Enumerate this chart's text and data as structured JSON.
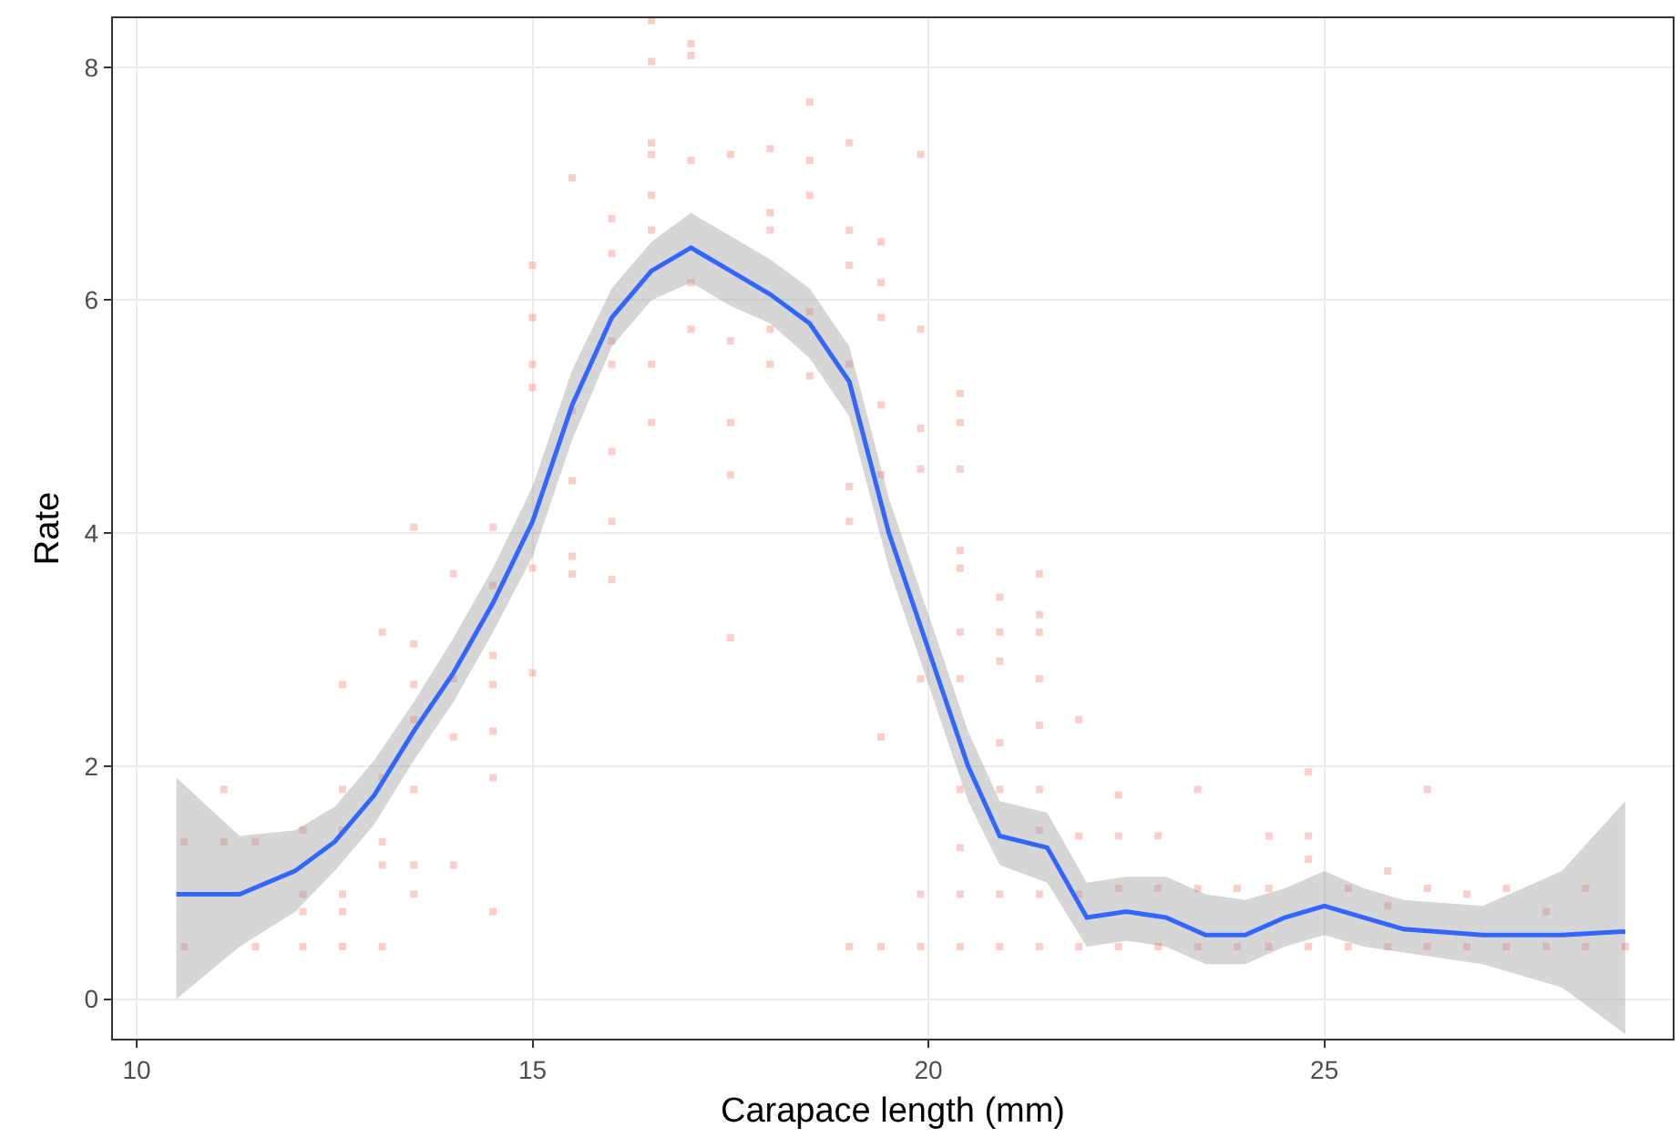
{
  "chart_data": {
    "type": "scatter",
    "xlabel": "Carapace length (mm)",
    "ylabel": "Rate",
    "xlim": [
      9.7,
      29.4
    ],
    "ylim": [
      -0.34,
      8.42
    ],
    "xticks": [
      10,
      15,
      20,
      25
    ],
    "yticks": [
      0,
      2,
      4,
      6,
      8
    ],
    "grid": true,
    "series": [
      {
        "color": "#f8766d",
        "marker": "square",
        "x": [
          10.6,
          10.6,
          11.1,
          11.1,
          11.5,
          11.5,
          12.1,
          12.1,
          12.1,
          12.1,
          12.6,
          12.6,
          12.6,
          12.6,
          12.6,
          12.6,
          13.1,
          13.1,
          13.1,
          13.1,
          13.1,
          13.5,
          13.5,
          13.5,
          13.5,
          13.5,
          13.5,
          13.5,
          14.0,
          14.0,
          14.0,
          14.0,
          14.5,
          14.5,
          14.5,
          14.5,
          14.5,
          14.5,
          14.5,
          15.0,
          15.0,
          15.0,
          15.0,
          15.0,
          15.0,
          15.5,
          15.5,
          15.5,
          15.5,
          15.5,
          16.0,
          16.0,
          16.0,
          16.0,
          16.0,
          16.0,
          16.0,
          16.5,
          16.5,
          16.5,
          16.5,
          16.5,
          16.5,
          16.5,
          16.5,
          17.0,
          17.0,
          17.0,
          17.0,
          17.0,
          17.5,
          17.5,
          17.5,
          17.5,
          17.5,
          18.0,
          18.0,
          18.0,
          18.0,
          18.0,
          18.5,
          18.5,
          18.5,
          18.5,
          18.5,
          19.0,
          19.0,
          19.0,
          19.0,
          19.0,
          19.0,
          19.0,
          19.4,
          19.4,
          19.4,
          19.4,
          19.4,
          19.4,
          19.4,
          19.9,
          19.9,
          19.9,
          19.9,
          19.9,
          19.9,
          19.9,
          20.4,
          20.4,
          20.4,
          20.4,
          20.4,
          20.4,
          20.4,
          20.4,
          20.4,
          20.4,
          20.4,
          20.9,
          20.9,
          20.9,
          20.9,
          20.9,
          20.9,
          20.9,
          21.4,
          21.4,
          21.4,
          21.4,
          21.4,
          21.4,
          21.4,
          21.4,
          21.4,
          21.9,
          21.9,
          21.9,
          21.9,
          22.4,
          22.4,
          22.4,
          22.4,
          22.9,
          22.9,
          22.9,
          23.4,
          23.4,
          23.4,
          23.9,
          23.9,
          24.3,
          24.3,
          24.3,
          24.8,
          24.8,
          24.8,
          24.8,
          25.3,
          25.3,
          25.8,
          25.8,
          25.8,
          26.3,
          26.3,
          26.3,
          26.8,
          26.8,
          27.3,
          27.3,
          27.8,
          27.8,
          28.3,
          28.3,
          28.8
        ],
        "values": [
          1.35,
          0.45,
          1.8,
          1.35,
          1.35,
          0.45,
          1.45,
          0.9,
          0.75,
          0.45,
          2.7,
          1.8,
          1.45,
          0.9,
          0.75,
          0.45,
          3.15,
          1.9,
          1.35,
          1.15,
          0.45,
          4.05,
          3.05,
          2.7,
          2.4,
          1.8,
          1.15,
          0.9,
          3.65,
          2.75,
          2.25,
          1.15,
          4.05,
          3.55,
          2.95,
          2.7,
          2.3,
          1.9,
          0.75,
          6.3,
          5.85,
          5.45,
          5.25,
          3.7,
          2.8,
          7.05,
          5.05,
          4.45,
          3.8,
          3.65,
          6.7,
          6.4,
          5.65,
          5.45,
          4.7,
          4.1,
          3.6,
          8.4,
          8.05,
          7.35,
          7.25,
          6.9,
          6.6,
          5.45,
          4.95,
          8.2,
          8.1,
          7.2,
          6.15,
          5.75,
          7.25,
          5.65,
          4.95,
          4.5,
          3.1,
          7.3,
          6.75,
          6.6,
          5.75,
          5.45,
          7.7,
          7.2,
          6.9,
          5.9,
          5.35,
          7.35,
          6.6,
          6.3,
          5.45,
          4.4,
          4.1,
          0.45,
          6.5,
          6.15,
          5.85,
          5.1,
          4.5,
          2.25,
          0.45,
          7.25,
          5.75,
          4.9,
          4.55,
          2.75,
          0.9,
          0.45,
          5.2,
          4.95,
          4.55,
          3.85,
          3.7,
          3.15,
          2.75,
          1.8,
          1.3,
          0.9,
          0.45,
          3.45,
          3.15,
          2.9,
          2.2,
          1.8,
          0.9,
          0.45,
          3.65,
          3.3,
          3.15,
          2.75,
          2.35,
          1.8,
          1.45,
          0.9,
          0.45,
          2.4,
          1.4,
          0.9,
          0.45,
          1.75,
          1.4,
          0.95,
          0.45,
          1.4,
          0.95,
          0.45,
          1.8,
          0.95,
          0.45,
          0.95,
          0.45,
          1.4,
          0.95,
          0.45,
          1.95,
          1.4,
          1.2,
          0.45,
          0.95,
          0.45,
          1.1,
          0.8,
          0.45,
          1.8,
          0.95,
          0.45,
          0.9,
          0.45,
          0.95,
          0.45,
          0.75,
          0.45,
          0.95,
          0.45,
          0.45
        ]
      },
      {
        "type": "line",
        "color": "#3366ff",
        "marker": "none",
        "line_style": "solid",
        "x": [
          10.5,
          11.3,
          12,
          12.5,
          13,
          13.5,
          14,
          14.5,
          15,
          15.5,
          16,
          16.5,
          17,
          17.5,
          18,
          18.5,
          19,
          19.5,
          20,
          20.5,
          20.9,
          21.5,
          22,
          22.5,
          23,
          23.5,
          24,
          24.5,
          25,
          25.5,
          26,
          27,
          28,
          28.8
        ],
        "values": [
          0.9,
          0.9,
          1.1,
          1.35,
          1.75,
          2.3,
          2.8,
          3.4,
          4.1,
          5.1,
          5.85,
          6.25,
          6.45,
          6.25,
          6.05,
          5.8,
          5.3,
          4.0,
          3.0,
          2.0,
          1.4,
          1.3,
          0.7,
          0.75,
          0.7,
          0.55,
          0.55,
          0.7,
          0.8,
          0.7,
          0.6,
          0.55,
          0.55,
          0.58
        ],
        "lower": [
          0.0,
          0.45,
          0.75,
          1.1,
          1.5,
          2.05,
          2.55,
          3.15,
          3.8,
          4.8,
          5.6,
          6.0,
          6.15,
          5.95,
          5.8,
          5.5,
          5.0,
          3.7,
          2.7,
          1.7,
          1.15,
          1.0,
          0.45,
          0.5,
          0.45,
          0.3,
          0.3,
          0.45,
          0.55,
          0.45,
          0.4,
          0.3,
          0.1,
          -0.3
        ],
        "upper": [
          1.9,
          1.4,
          1.45,
          1.65,
          2.05,
          2.55,
          3.1,
          3.7,
          4.4,
          5.4,
          6.1,
          6.5,
          6.75,
          6.55,
          6.35,
          6.1,
          5.6,
          4.3,
          3.3,
          2.3,
          1.7,
          1.6,
          1.0,
          1.05,
          1.05,
          0.9,
          0.85,
          0.95,
          1.1,
          0.95,
          0.85,
          0.8,
          1.1,
          1.7
        ]
      }
    ]
  }
}
